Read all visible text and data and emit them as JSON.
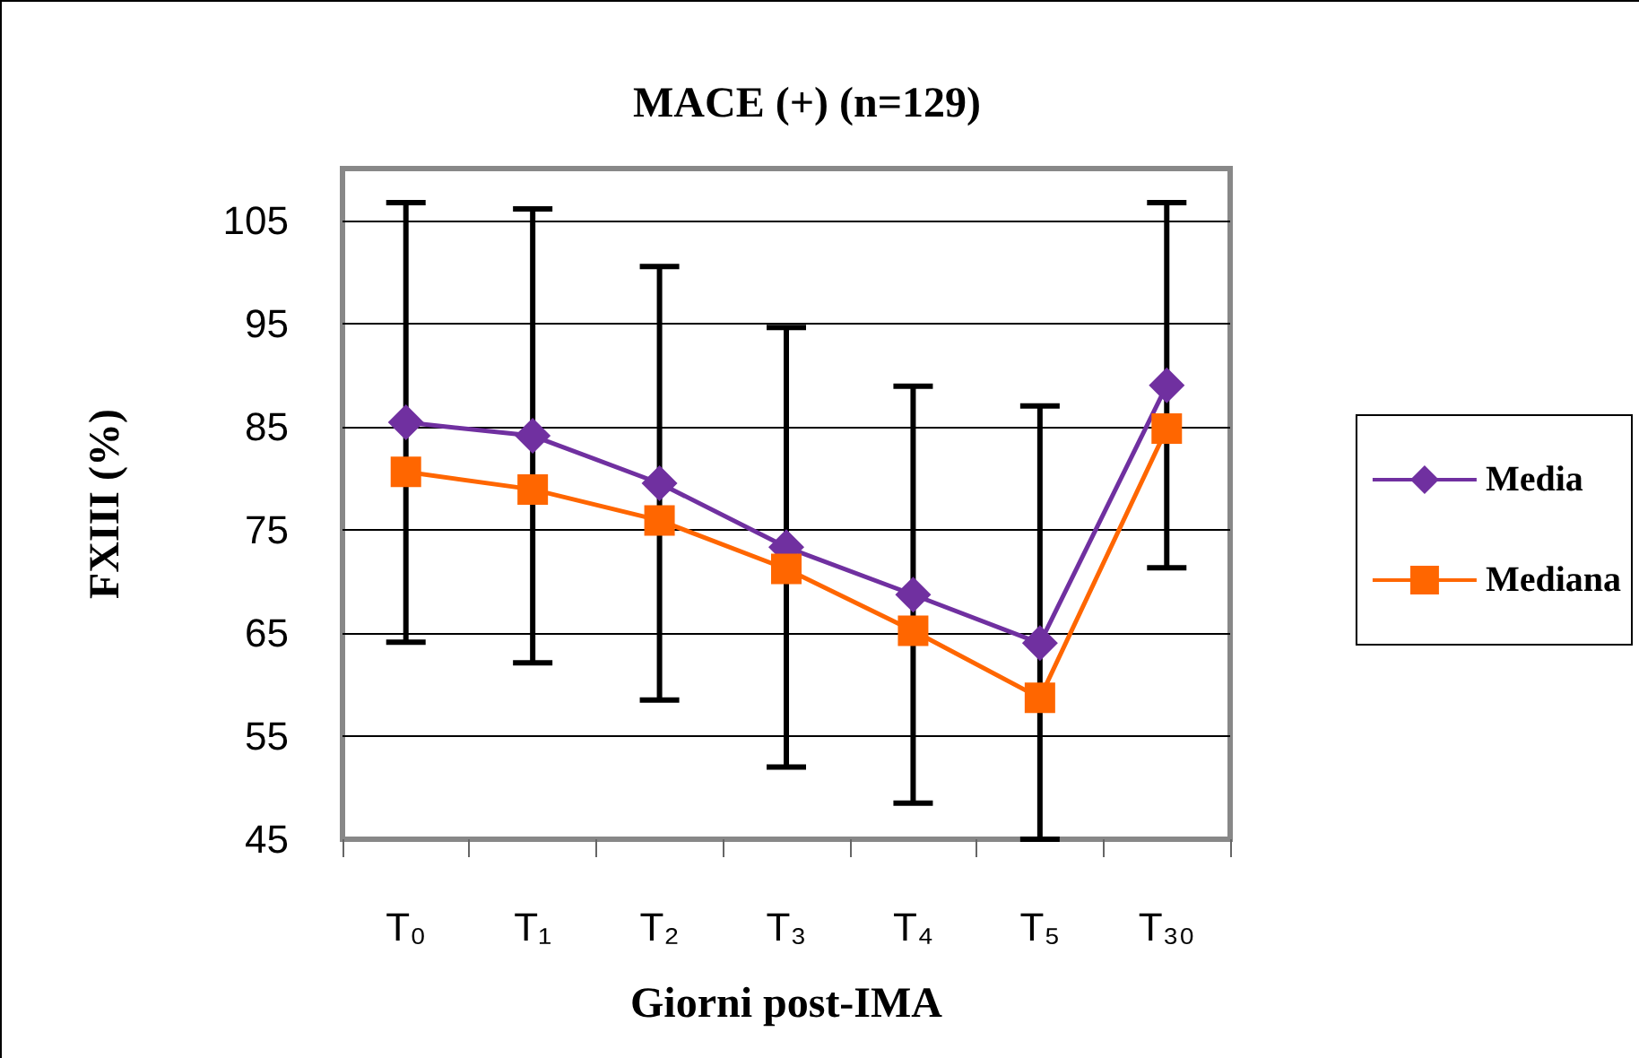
{
  "chart_data": {
    "type": "line",
    "title": "MACE (+) (n=129)",
    "xlabel": "Giorni post-IMA",
    "ylabel": "FXIII (%)",
    "categories": [
      "T₀",
      "T₁",
      "T₂",
      "T₃",
      "T₄",
      "T₅",
      "T₃₀"
    ],
    "series": [
      {
        "name": "Media",
        "color": "#7030a0",
        "marker": "diamond",
        "values": [
          85.4,
          84.1,
          79.5,
          73.3,
          68.7,
          64.0,
          89.0
        ],
        "errors": [
          21.3,
          22,
          21,
          21.3,
          20.2,
          [
            45,
            87
          ],
          17.7
        ]
      },
      {
        "name": "Mediana",
        "color": "#ff6600",
        "marker": "square",
        "values": [
          80.6,
          78.9,
          75.9,
          71.2,
          65.2,
          58.7,
          84.8
        ]
      }
    ],
    "ylim": [
      45,
      110
    ],
    "yticks": [
      45,
      55,
      65,
      75,
      85,
      95,
      105
    ],
    "grid": "y",
    "legend": "right"
  }
}
